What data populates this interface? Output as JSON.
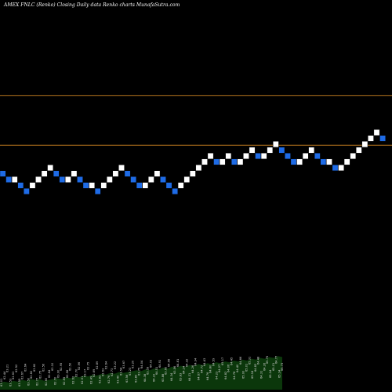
{
  "title": "AMEX  FNLC  (Renko) Closing Daily data  Renko  charts MunafaSutra.com",
  "colors": {
    "background": "#000000",
    "up_brick": "#ffffff",
    "down_brick": "#1e6be6",
    "brick_outline": "#000000",
    "ref_line": "#b8751e",
    "volume_fill": "#0c3a0c",
    "volume_label": "#d7d7d7"
  },
  "chart_data": {
    "type": "renko",
    "brick_size": 0.15,
    "y_axis_visible": false,
    "x_axis_visible": false,
    "grid": false,
    "legend": "none",
    "reference_lines": [
      72.65,
      71.38
    ],
    "bricks": [
      {
        "dir": "down",
        "low": 70.58,
        "high": 70.73
      },
      {
        "dir": "down",
        "low": 70.43,
        "high": 70.58
      },
      {
        "dir": "up",
        "low": 70.43,
        "high": 70.58
      },
      {
        "dir": "down",
        "low": 70.28,
        "high": 70.43
      },
      {
        "dir": "down",
        "low": 70.13,
        "high": 70.28
      },
      {
        "dir": "up",
        "low": 70.28,
        "high": 70.43
      },
      {
        "dir": "up",
        "low": 70.43,
        "high": 70.58
      },
      {
        "dir": "up",
        "low": 70.58,
        "high": 70.73
      },
      {
        "dir": "up",
        "low": 70.73,
        "high": 70.88
      },
      {
        "dir": "down",
        "low": 70.58,
        "high": 70.73
      },
      {
        "dir": "down",
        "low": 70.43,
        "high": 70.58
      },
      {
        "dir": "up",
        "low": 70.43,
        "high": 70.58
      },
      {
        "dir": "up",
        "low": 70.58,
        "high": 70.73
      },
      {
        "dir": "down",
        "low": 70.43,
        "high": 70.58
      },
      {
        "dir": "down",
        "low": 70.28,
        "high": 70.43
      },
      {
        "dir": "up",
        "low": 70.28,
        "high": 70.43
      },
      {
        "dir": "down",
        "low": 70.13,
        "high": 70.28
      },
      {
        "dir": "up",
        "low": 70.28,
        "high": 70.43
      },
      {
        "dir": "up",
        "low": 70.43,
        "high": 70.58
      },
      {
        "dir": "up",
        "low": 70.58,
        "high": 70.73
      },
      {
        "dir": "up",
        "low": 70.73,
        "high": 70.88
      },
      {
        "dir": "down",
        "low": 70.58,
        "high": 70.73
      },
      {
        "dir": "down",
        "low": 70.43,
        "high": 70.58
      },
      {
        "dir": "down",
        "low": 70.28,
        "high": 70.43
      },
      {
        "dir": "up",
        "low": 70.28,
        "high": 70.43
      },
      {
        "dir": "up",
        "low": 70.43,
        "high": 70.58
      },
      {
        "dir": "up",
        "low": 70.58,
        "high": 70.73
      },
      {
        "dir": "down",
        "low": 70.43,
        "high": 70.58
      },
      {
        "dir": "down",
        "low": 70.28,
        "high": 70.43
      },
      {
        "dir": "down",
        "low": 70.13,
        "high": 70.28
      },
      {
        "dir": "up",
        "low": 70.28,
        "high": 70.43
      },
      {
        "dir": "up",
        "low": 70.43,
        "high": 70.58
      },
      {
        "dir": "up",
        "low": 70.58,
        "high": 70.73
      },
      {
        "dir": "up",
        "low": 70.73,
        "high": 70.88
      },
      {
        "dir": "up",
        "low": 70.88,
        "high": 71.03
      },
      {
        "dir": "up",
        "low": 71.03,
        "high": 71.18
      },
      {
        "dir": "down",
        "low": 70.88,
        "high": 71.03
      },
      {
        "dir": "up",
        "low": 70.88,
        "high": 71.03
      },
      {
        "dir": "up",
        "low": 71.03,
        "high": 71.18
      },
      {
        "dir": "down",
        "low": 70.88,
        "high": 71.03
      },
      {
        "dir": "up",
        "low": 70.88,
        "high": 71.03
      },
      {
        "dir": "up",
        "low": 71.03,
        "high": 71.18
      },
      {
        "dir": "up",
        "low": 71.18,
        "high": 71.33
      },
      {
        "dir": "down",
        "low": 71.03,
        "high": 71.18
      },
      {
        "dir": "up",
        "low": 71.03,
        "high": 71.18
      },
      {
        "dir": "up",
        "low": 71.18,
        "high": 71.33
      },
      {
        "dir": "up",
        "low": 71.33,
        "high": 71.48
      },
      {
        "dir": "down",
        "low": 71.18,
        "high": 71.33
      },
      {
        "dir": "down",
        "low": 71.03,
        "high": 71.18
      },
      {
        "dir": "down",
        "low": 70.88,
        "high": 71.03
      },
      {
        "dir": "up",
        "low": 70.88,
        "high": 71.03
      },
      {
        "dir": "up",
        "low": 71.03,
        "high": 71.18
      },
      {
        "dir": "up",
        "low": 71.18,
        "high": 71.33
      },
      {
        "dir": "down",
        "low": 71.03,
        "high": 71.18
      },
      {
        "dir": "down",
        "low": 70.88,
        "high": 71.03
      },
      {
        "dir": "up",
        "low": 70.88,
        "high": 71.03
      },
      {
        "dir": "down",
        "low": 70.73,
        "high": 70.88
      },
      {
        "dir": "up",
        "low": 70.73,
        "high": 70.88
      },
      {
        "dir": "up",
        "low": 70.88,
        "high": 71.03
      },
      {
        "dir": "up",
        "low": 71.03,
        "high": 71.18
      },
      {
        "dir": "up",
        "low": 71.18,
        "high": 71.33
      },
      {
        "dir": "up",
        "low": 71.33,
        "high": 71.48
      },
      {
        "dir": "up",
        "low": 71.48,
        "high": 71.63
      },
      {
        "dir": "up",
        "low": 71.63,
        "high": 71.78
      },
      {
        "dir": "down",
        "low": 71.48,
        "high": 71.63
      }
    ],
    "volume_profile": [
      8,
      9,
      8,
      10,
      9,
      11,
      10,
      12,
      11,
      12,
      10,
      11,
      12,
      13,
      12,
      14,
      13,
      15,
      14,
      16,
      15,
      17,
      16,
      18,
      17,
      19,
      18,
      20,
      19,
      20,
      21,
      22,
      21,
      23,
      22,
      24,
      23,
      25,
      24,
      26,
      25,
      27,
      26,
      28,
      27,
      29,
      28,
      30,
      29,
      31,
      30,
      32,
      31,
      33,
      32,
      34,
      33,
      35,
      34,
      36,
      35,
      37,
      36,
      38,
      37
    ],
    "price_labels": [
      "63.01",
      "62.44",
      "63.21",
      "63.53",
      "62.63",
      "62.52",
      "63.55",
      "62.67",
      "62.64",
      "63.50",
      "62.82",
      "63.60",
      "62.77",
      "62.75",
      "62.56",
      "62.60",
      "62.84",
      "63.10",
      "62.70",
      "63.00",
      "62.95",
      "62.65",
      "62.56",
      "62.50",
      "62.62",
      "62.70",
      "62.96",
      "62.91",
      "63.17",
      "62.75",
      "62.49",
      "62.69",
      "62.89",
      "62.82",
      "62.63",
      "62.64",
      "62.76",
      "62.73",
      "63.22",
      "63.40",
      "63.54",
      "63.67",
      "63.56",
      "63.23",
      "63.20",
      "63.80",
      "63.75",
      "64.04",
      "64.38",
      "63.59",
      "64.03",
      "64.22",
      "64.51",
      "64.91",
      "63.88",
      "63.60",
      "64.56",
      "64.34",
      "63.56",
      "64.81",
      "63.83",
      "64.14",
      "64.32",
      "64.31",
      "64.26",
      "64.34",
      "64.67",
      "64.72",
      "64.43",
      "64.76",
      "64.80",
      "64.59",
      "64.23",
      "64.27",
      "65.17",
      "64.82",
      "64.06",
      "64.45",
      "64.78",
      "64.40",
      "64.66",
      "65.00",
      "65.01",
      "65.31",
      "65.18",
      "64.83",
      "64.48",
      "64.31",
      "64.26",
      "65.75",
      "65.14",
      "65.01",
      "64.77",
      "65.14",
      "65.73"
    ]
  }
}
